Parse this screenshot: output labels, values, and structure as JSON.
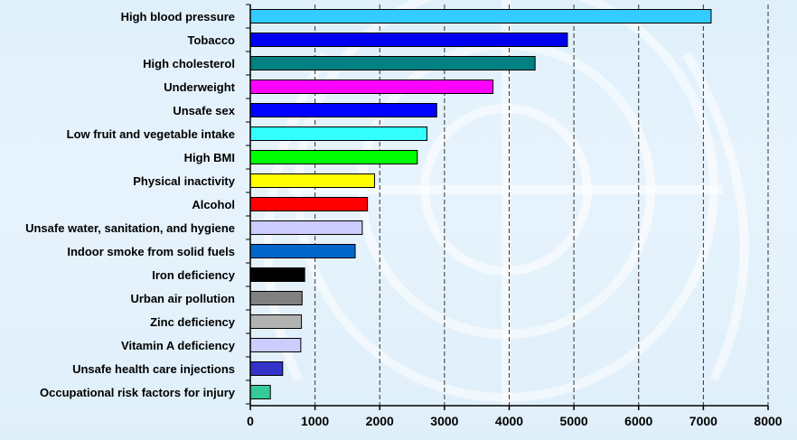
{
  "chart_data": {
    "type": "bar",
    "orientation": "horizontal",
    "title": "",
    "xlabel": "",
    "ylabel": "",
    "xlim": [
      0,
      8000
    ],
    "xticks": [
      0,
      1000,
      2000,
      3000,
      4000,
      5000,
      6000,
      7000,
      8000
    ],
    "grid": "vertical dashed",
    "categories": [
      "High blood pressure",
      "Tobacco",
      "High cholesterol",
      "Underweight",
      "Unsafe sex",
      "Low fruit and vegetable intake",
      "High BMI",
      "Physical inactivity",
      "Alcohol",
      "Unsafe water, sanitation, and hygiene",
      "Indoor smoke from solid fuels",
      "Iron deficiency",
      "Urban air pollution",
      "Zinc deficiency",
      "Vitamin A deficiency",
      "Unsafe health care injections",
      "Occupational risk factors for injury"
    ],
    "values": [
      7120,
      4900,
      4400,
      3750,
      2880,
      2730,
      2580,
      1920,
      1810,
      1730,
      1620,
      840,
      800,
      790,
      780,
      500,
      310
    ],
    "colors": [
      "#33ccff",
      "#0000ee",
      "#008080",
      "#ff00ff",
      "#0000ff",
      "#33ffff",
      "#00ff00",
      "#ffff00",
      "#ff0000",
      "#ccccff",
      "#0066cc",
      "#000000",
      "#808080",
      "#b2b2b2",
      "#ccccff",
      "#3333cc",
      "#33cc99"
    ]
  }
}
